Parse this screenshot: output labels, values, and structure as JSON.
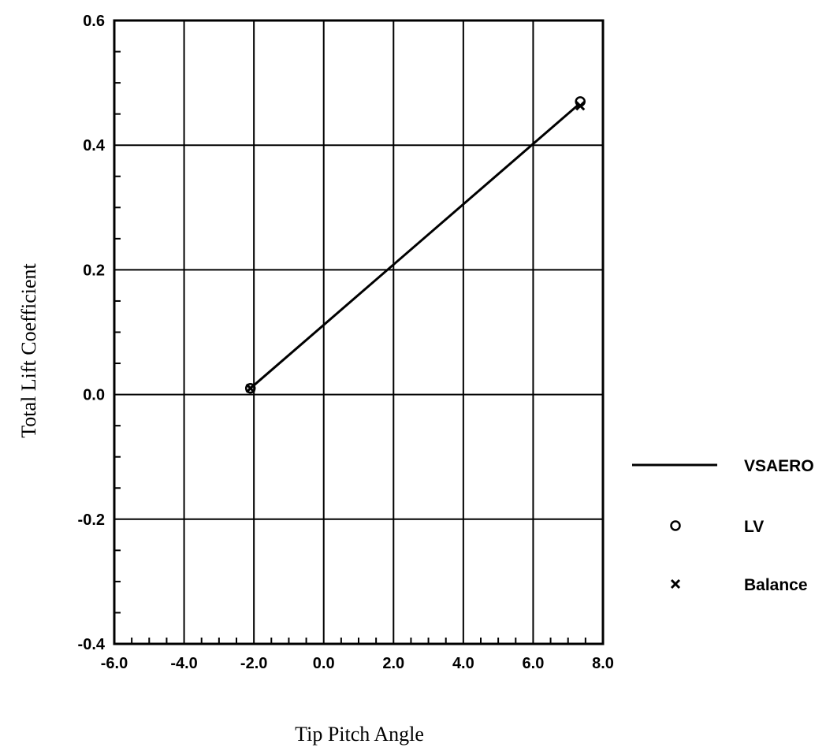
{
  "chart_data": {
    "type": "line",
    "xlabel": "Tip Pitch Angle",
    "ylabel": "Total Lift Coefficient",
    "xlim": [
      -6.0,
      8.0
    ],
    "ylim": [
      -0.4,
      0.6
    ],
    "x_ticks": [
      -6.0,
      -4.0,
      -2.0,
      0.0,
      2.0,
      4.0,
      6.0,
      8.0
    ],
    "y_ticks": [
      -0.4,
      -0.2,
      0.0,
      0.2,
      0.4,
      0.6
    ],
    "x_tick_labels": [
      "-6.0",
      "-4.0",
      "-2.0",
      "0.0",
      "2.0",
      "4.0",
      "6.0",
      "8.0"
    ],
    "y_tick_labels": [
      "-0.4",
      "-0.2",
      "0.0",
      "0.2",
      "0.4",
      "0.6"
    ],
    "grid": true,
    "legend_position": "right",
    "series": [
      {
        "name": "VSAERO",
        "style": "line",
        "x": [
          -2.1,
          7.3
        ],
        "y": [
          0.01,
          0.465
        ]
      },
      {
        "name": "LV",
        "style": "circle-marker",
        "x": [
          -2.1,
          7.35
        ],
        "y": [
          0.01,
          0.47
        ]
      },
      {
        "name": "Balance",
        "style": "x-marker",
        "x": [
          -2.1,
          7.35
        ],
        "y": [
          0.01,
          0.463
        ]
      }
    ],
    "colors": {
      "line": "#000000",
      "grid": "#000000",
      "background": "#ffffff"
    }
  }
}
